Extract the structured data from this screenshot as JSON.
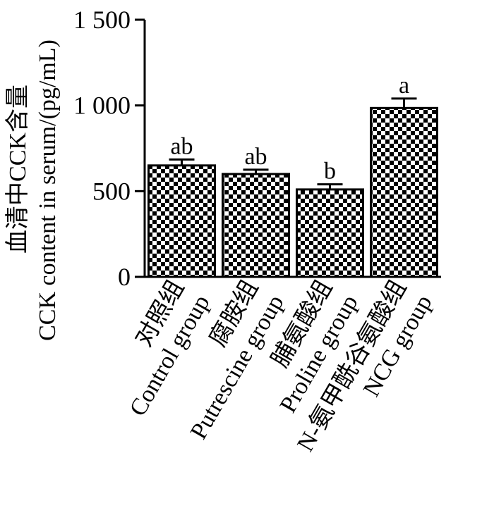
{
  "chart_data": {
    "type": "bar",
    "ylabel_cn": "血清中CCK含量",
    "ylabel_en": "CCK content in serum/(pg/mL)",
    "ylim": [
      0,
      1500
    ],
    "yticks": [
      0,
      500,
      1000,
      1500
    ],
    "ytick_labels": [
      "0",
      "500",
      "1 000",
      "1 500"
    ],
    "categories": [
      {
        "cn": "对照组",
        "en": "Control group"
      },
      {
        "cn": "腐胺组",
        "en": "Putrescine group"
      },
      {
        "cn": "脯氨酸组",
        "en": "Proline group"
      },
      {
        "cn": "N-氨甲酰谷氨酸组",
        "en": "NCG group"
      }
    ],
    "values": [
      650,
      600,
      510,
      985
    ],
    "errors": [
      35,
      25,
      30,
      55
    ],
    "significance": [
      "ab",
      "ab",
      "b",
      "a"
    ],
    "bar_pattern": "checkerboard",
    "bar_color": "#000000"
  }
}
